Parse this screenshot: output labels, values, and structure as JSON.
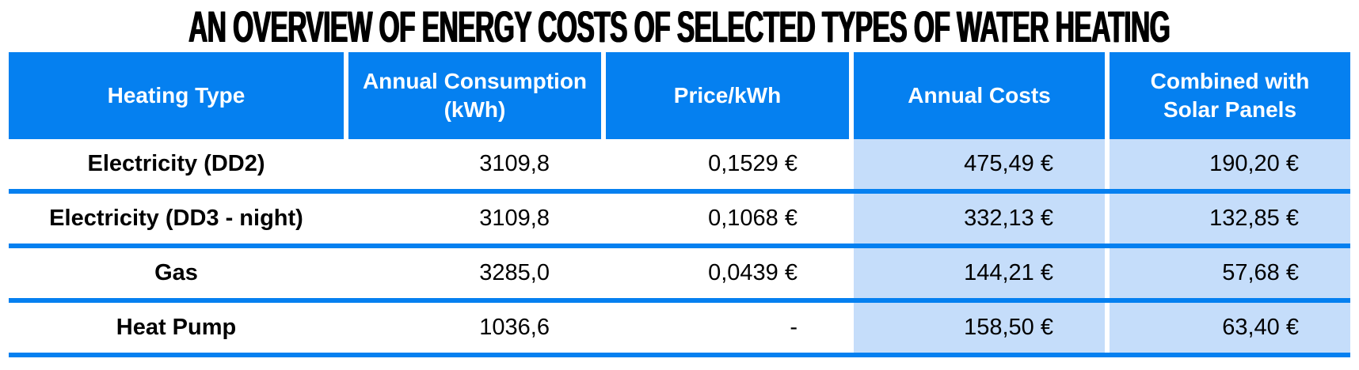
{
  "title": "AN OVERVIEW OF ENERGY COSTS OF SELECTED TYPES OF WATER HEATING",
  "colors": {
    "header_blue": "#0580f0",
    "row_highlight": "#c5ddfa",
    "header_text": "#ffffff",
    "body_text": "#000000"
  },
  "table": {
    "headers": [
      "Heating Type",
      "Annual Consumption (kWh)",
      "Price/kWh",
      "Annual Costs",
      "Combined with Solar Panels"
    ],
    "rows": [
      [
        "Electricity (DD2)",
        "3109,8",
        "0,1529 €",
        "475,49 €",
        "190,20 €"
      ],
      [
        "Electricity (DD3 - night)",
        "3109,8",
        "0,1068 €",
        "332,13 €",
        "132,85 €"
      ],
      [
        "Gas",
        "3285,0",
        "0,0439 €",
        "144,21 €",
        "57,68 €"
      ],
      [
        "Heat Pump",
        "1036,6",
        "-",
        "158,50 €",
        "63,40 €"
      ]
    ]
  },
  "chart_data": {
    "type": "table",
    "title": "AN OVERVIEW OF ENERGY COSTS OF SELECTED TYPES OF WATER HEATING",
    "columns": [
      "Heating Type",
      "Annual Consumption (kWh)",
      "Price/kWh",
      "Annual Costs",
      "Combined with Solar Panels"
    ],
    "rows": [
      [
        "Electricity (DD2)",
        3109.8,
        0.1529,
        475.49,
        190.2
      ],
      [
        "Electricity (DD3 - night)",
        3109.8,
        0.1068,
        332.13,
        132.85
      ],
      [
        "Gas",
        3285.0,
        0.0439,
        144.21,
        57.68
      ],
      [
        "Heat Pump",
        1036.6,
        null,
        158.5,
        63.4
      ]
    ],
    "notes": "Currency EUR with comma decimal separator; last two columns highlighted light blue"
  }
}
